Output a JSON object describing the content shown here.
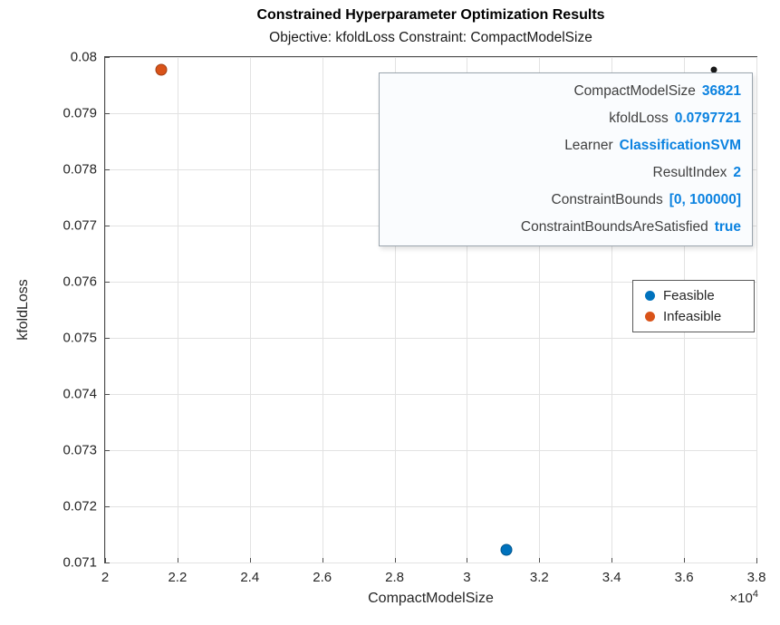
{
  "title": "Constrained Hyperparameter Optimization Results",
  "subtitle": "Objective: kfoldLoss Constraint: CompactModelSize",
  "axes": {
    "xlabel": "CompactModelSize",
    "ylabel": "kfoldLoss",
    "x_exponent_base": "×10",
    "x_exponent_power": "4"
  },
  "colors": {
    "feasible": "#0072BD",
    "infeasible": "#D95319",
    "selected_point": "#1a1a1a",
    "datatip_value": "#0b82e0"
  },
  "chart_data": {
    "type": "scatter",
    "title": "Constrained Hyperparameter Optimization Results",
    "subtitle": "Objective: kfoldLoss Constraint: CompactModelSize",
    "xlabel": "CompactModelSize",
    "ylabel": "kfoldLoss",
    "xlim": [
      20000,
      38000
    ],
    "ylim": [
      0.071,
      0.08
    ],
    "grid": true,
    "legend_position": "right-middle",
    "x_ticks": [
      {
        "v": 20000,
        "label": "2"
      },
      {
        "v": 22000,
        "label": "2.2"
      },
      {
        "v": 24000,
        "label": "2.4"
      },
      {
        "v": 26000,
        "label": "2.6"
      },
      {
        "v": 28000,
        "label": "2.8"
      },
      {
        "v": 30000,
        "label": "3"
      },
      {
        "v": 32000,
        "label": "3.2"
      },
      {
        "v": 34000,
        "label": "3.4"
      },
      {
        "v": 36000,
        "label": "3.6"
      },
      {
        "v": 38000,
        "label": "3.8"
      }
    ],
    "y_ticks": [
      {
        "v": 0.071,
        "label": "0.071"
      },
      {
        "v": 0.072,
        "label": "0.072"
      },
      {
        "v": 0.073,
        "label": "0.073"
      },
      {
        "v": 0.074,
        "label": "0.074"
      },
      {
        "v": 0.075,
        "label": "0.075"
      },
      {
        "v": 0.076,
        "label": "0.076"
      },
      {
        "v": 0.077,
        "label": "0.077"
      },
      {
        "v": 0.078,
        "label": "0.078"
      },
      {
        "v": 0.079,
        "label": "0.079"
      },
      {
        "v": 0.08,
        "label": "0.08"
      }
    ],
    "series": [
      {
        "name": "Feasible",
        "color": "#0072BD",
        "marker_size": 13,
        "points": [
          {
            "x": 31100,
            "y": 0.07122
          }
        ]
      },
      {
        "name": "Infeasible",
        "color": "#D95319",
        "marker_size": 13,
        "points": [
          {
            "x": 21550,
            "y": 0.07978
          }
        ]
      },
      {
        "name": "Selected",
        "color": "#1a1a1a",
        "marker_size": 7,
        "points": [
          {
            "x": 36821,
            "y": 0.0797721
          }
        ]
      }
    ]
  },
  "datatip": {
    "rows": [
      {
        "label": "CompactModelSize",
        "value": "36821"
      },
      {
        "label": "kfoldLoss",
        "value": "0.0797721"
      },
      {
        "label": "Learner",
        "value": "ClassificationSVM"
      },
      {
        "label": "ResultIndex",
        "value": "2"
      },
      {
        "label": "ConstraintBounds",
        "value": "[0, 100000]"
      },
      {
        "label": "ConstraintBoundsAreSatisfied",
        "value": "true"
      }
    ]
  },
  "legend": {
    "items": [
      {
        "label": "Feasible",
        "color": "#0072BD"
      },
      {
        "label": "Infeasible",
        "color": "#D95319"
      }
    ]
  }
}
